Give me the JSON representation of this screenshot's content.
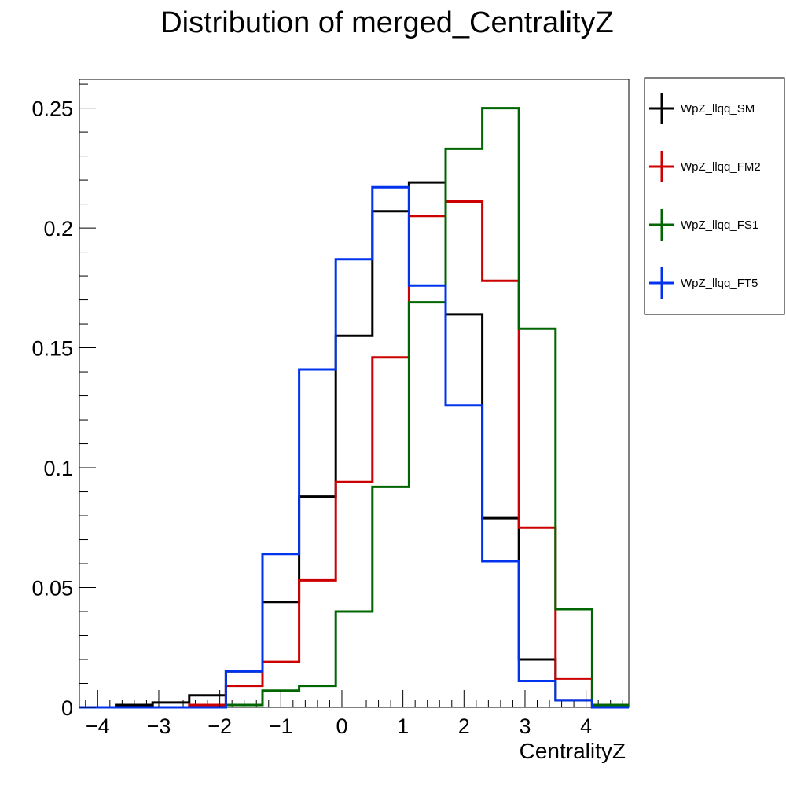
{
  "chart_data": {
    "type": "line",
    "title": "Distribution of merged_CentralityZ",
    "xlabel": "CentralityZ",
    "ylabel": "",
    "xlim": [
      -4.3,
      4.7
    ],
    "ylim": [
      0,
      0.262
    ],
    "x_ticks": [
      -4,
      -3,
      -2,
      -1,
      0,
      1,
      2,
      3,
      4
    ],
    "x_tick_labels": [
      "−4",
      "−3",
      "−2",
      "−1",
      "0",
      "1",
      "2",
      "3",
      "4"
    ],
    "y_ticks": [
      0,
      0.05,
      0.1,
      0.15,
      0.2,
      0.25
    ],
    "y_tick_labels": [
      "0",
      "0.05",
      "0.1",
      "0.15",
      "0.2",
      "0.25"
    ],
    "bin_edges": [
      -4.3,
      -3.7,
      -3.1,
      -2.5,
      -1.9,
      -1.3,
      -0.7,
      -0.1,
      0.5,
      1.1,
      1.7,
      2.3,
      2.9,
      3.5,
      4.1,
      4.7
    ],
    "legend_position": "right",
    "series": [
      {
        "name": "WpZ_llqq_SM",
        "color": "#000000",
        "values": [
          0.0,
          0.001,
          0.002,
          0.005,
          0.015,
          0.044,
          0.088,
          0.155,
          0.207,
          0.219,
          0.164,
          0.079,
          0.02,
          0.003,
          0.0
        ]
      },
      {
        "name": "WpZ_llqq_FM2",
        "color": "#cc0000",
        "values": [
          0.0,
          0.0,
          0.0,
          0.001,
          0.009,
          0.019,
          0.053,
          0.094,
          0.146,
          0.205,
          0.211,
          0.178,
          0.075,
          0.012,
          0.001
        ]
      },
      {
        "name": "WpZ_llqq_FS1",
        "color": "#006600",
        "values": [
          0.0,
          0.0,
          0.0,
          0.0,
          0.001,
          0.007,
          0.009,
          0.04,
          0.092,
          0.169,
          0.233,
          0.25,
          0.158,
          0.041,
          0.001
        ]
      },
      {
        "name": "WpZ_llqq_FT5",
        "color": "#0033ee",
        "values": [
          0.0,
          0.0,
          0.0,
          0.0,
          0.015,
          0.064,
          0.141,
          0.187,
          0.217,
          0.176,
          0.126,
          0.061,
          0.011,
          0.003,
          0.0
        ]
      }
    ]
  }
}
